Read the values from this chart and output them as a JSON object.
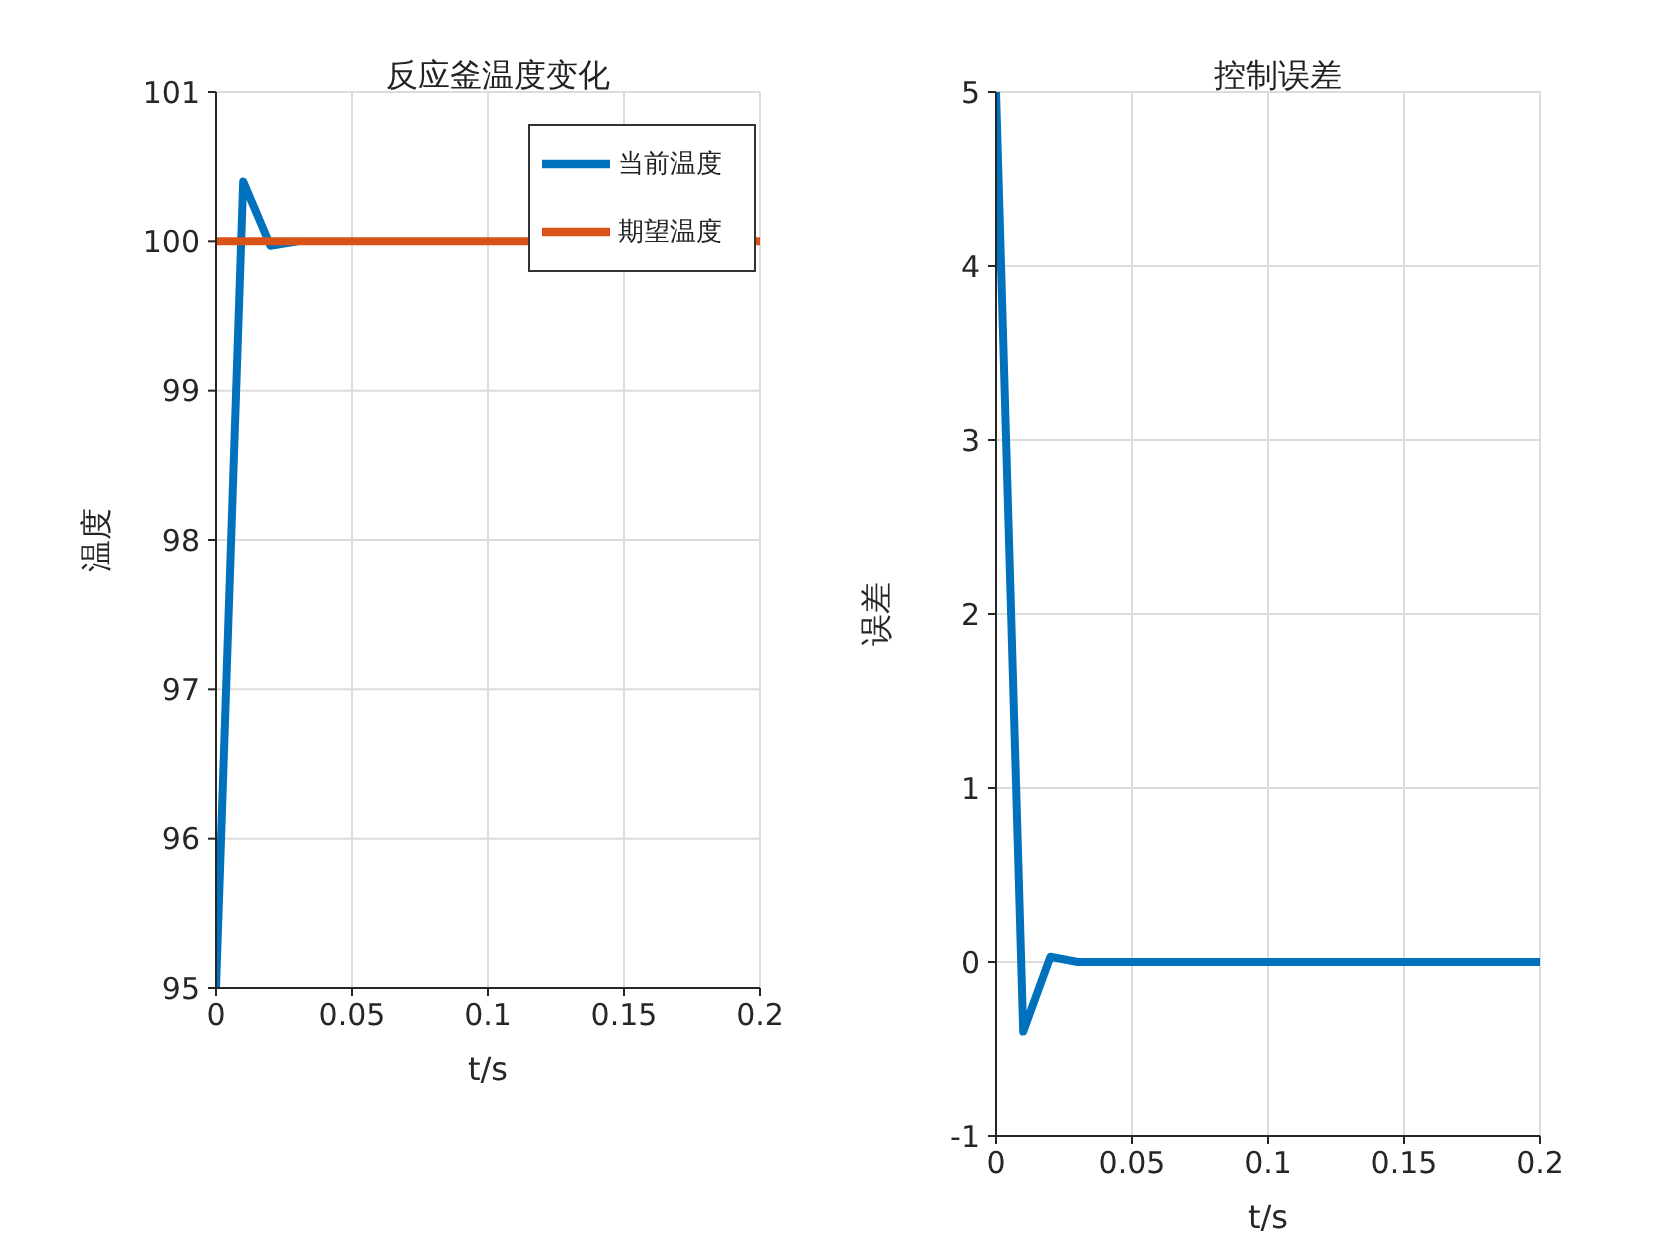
{
  "chart_data": [
    {
      "type": "line",
      "title": "反应釜温度变化",
      "xlabel": "t/s",
      "ylabel": "温度",
      "xlim": [
        0,
        0.2
      ],
      "xticks": [
        0,
        0.05,
        0.1,
        0.15,
        0.2
      ],
      "ylim": [
        95,
        101
      ],
      "yticks": [
        95,
        96,
        97,
        98,
        99,
        100,
        101
      ],
      "grid": true,
      "legend": "top right",
      "series": [
        {
          "name": "当前温度",
          "color": "#0072bd",
          "x": [
            0,
            0.01,
            0.02,
            0.03
          ],
          "values": [
            95,
            100.4,
            99.97,
            100
          ]
        },
        {
          "name": "期望温度",
          "color": "#d95319",
          "x": [
            0,
            0.2
          ],
          "values": [
            100,
            100
          ]
        }
      ]
    },
    {
      "type": "line",
      "title": "控制误差",
      "xlabel": "t/s",
      "ylabel": "误差",
      "xlim": [
        0,
        0.2
      ],
      "xticks": [
        0,
        0.05,
        0.1,
        0.15,
        0.2
      ],
      "ylim": [
        -1,
        5
      ],
      "yticks": [
        -1,
        0,
        1,
        2,
        3,
        4,
        5
      ],
      "grid": true,
      "series": [
        {
          "color": "#0072bd",
          "x": [
            0,
            0.01,
            0.02,
            0.03,
            0.2
          ],
          "values": [
            5,
            -0.4,
            0.03,
            0,
            0
          ]
        }
      ]
    }
  ]
}
